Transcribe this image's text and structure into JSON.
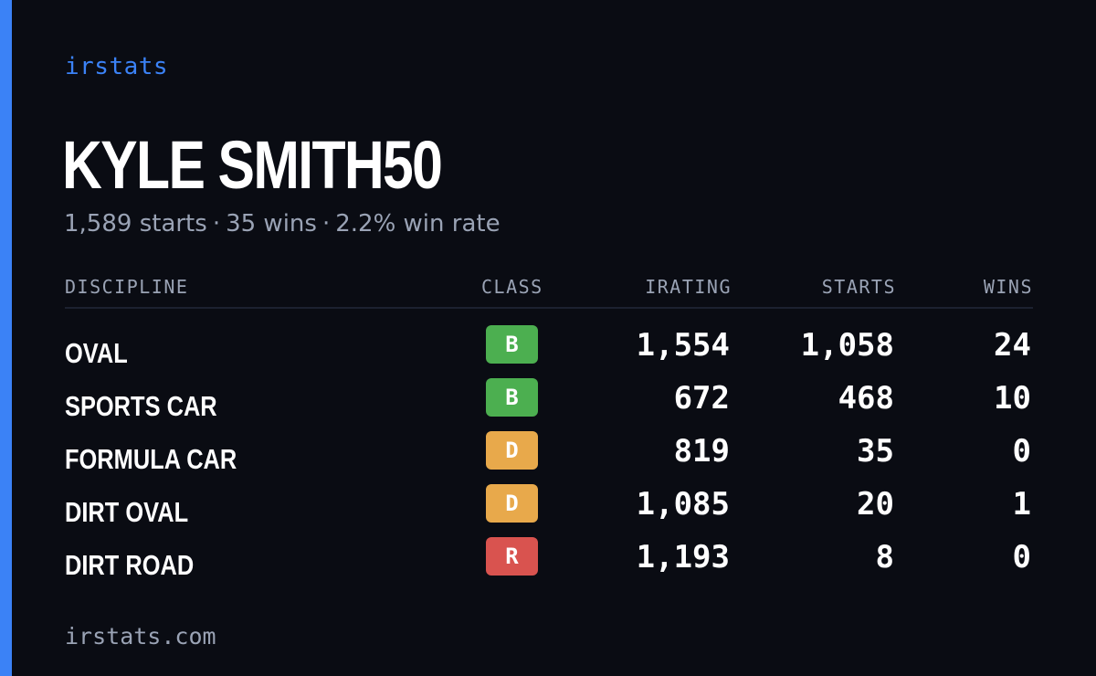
{
  "brand": {
    "name": "irstats",
    "accent_color": "#3b82f6"
  },
  "driver": {
    "name": "KYLE SMITH50",
    "starts_text": "1,589 starts",
    "wins_text": "35 wins",
    "win_rate_text": "2.2% win rate",
    "separator": "·"
  },
  "table": {
    "headers": {
      "discipline": "DISCIPLINE",
      "class": "CLASS",
      "irating": "IRATING",
      "starts": "STARTS",
      "wins": "WINS"
    },
    "rows": [
      {
        "discipline": "OVAL",
        "class": "B",
        "class_color": "#4caf50",
        "irating": "1,554",
        "starts": "1,058",
        "wins": "24"
      },
      {
        "discipline": "SPORTS CAR",
        "class": "B",
        "class_color": "#4caf50",
        "irating": "672",
        "starts": "468",
        "wins": "10"
      },
      {
        "discipline": "FORMULA CAR",
        "class": "D",
        "class_color": "#e8a94b",
        "irating": "819",
        "starts": "35",
        "wins": "0"
      },
      {
        "discipline": "DIRT OVAL",
        "class": "D",
        "class_color": "#e8a94b",
        "irating": "1,085",
        "starts": "20",
        "wins": "1"
      },
      {
        "discipline": "DIRT ROAD",
        "class": "R",
        "class_color": "#d9534f",
        "irating": "1,193",
        "starts": "8",
        "wins": "0"
      }
    ]
  },
  "footer": {
    "site": "irstats.com"
  }
}
